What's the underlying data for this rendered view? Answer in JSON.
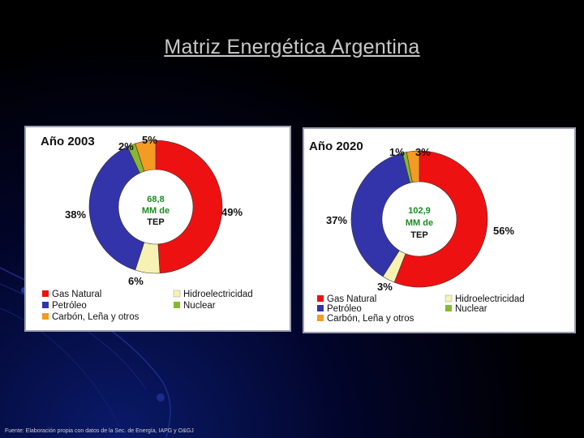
{
  "title": "Matriz Energética Argentina",
  "footer": "Fuente: Elaboración propia con datos de la Sec. de Energía, IAPG y O&GJ",
  "colors": {
    "gas": "#ee1111",
    "petroleo": "#3333aa",
    "carbon": "#f59a22",
    "hidro": "#f7f2b4",
    "nuclear": "#88b832"
  },
  "legend": [
    {
      "key": "gas",
      "label": "Gas Natural"
    },
    {
      "key": "hidro",
      "label": "Hidroelectricidad"
    },
    {
      "key": "petroleo",
      "label": "Petróleo"
    },
    {
      "key": "nuclear",
      "label": "Nuclear"
    },
    {
      "key": "carbon",
      "label": "Carbón, Leña y otros"
    }
  ],
  "chart_data": [
    {
      "type": "pie",
      "title": "Año 2003",
      "center_label": [
        "68,8",
        "MM de",
        "TEP"
      ],
      "slices": [
        {
          "key": "gas",
          "value": 49,
          "label": "49%"
        },
        {
          "key": "hidro",
          "value": 6,
          "label": "6%"
        },
        {
          "key": "petroleo",
          "value": 38,
          "label": "38%"
        },
        {
          "key": "nuclear",
          "value": 2,
          "label": "2%"
        },
        {
          "key": "carbon",
          "value": 5,
          "label": "5%"
        }
      ]
    },
    {
      "type": "pie",
      "title": "Año 2020",
      "center_label": [
        "102,9",
        "MM de",
        "TEP"
      ],
      "slices": [
        {
          "key": "gas",
          "value": 56,
          "label": "56%"
        },
        {
          "key": "hidro",
          "value": 3,
          "label": "3%"
        },
        {
          "key": "petroleo",
          "value": 37,
          "label": "37%"
        },
        {
          "key": "nuclear",
          "value": 1,
          "label": "1%"
        },
        {
          "key": "carbon",
          "value": 3,
          "label": "3%"
        }
      ]
    }
  ]
}
